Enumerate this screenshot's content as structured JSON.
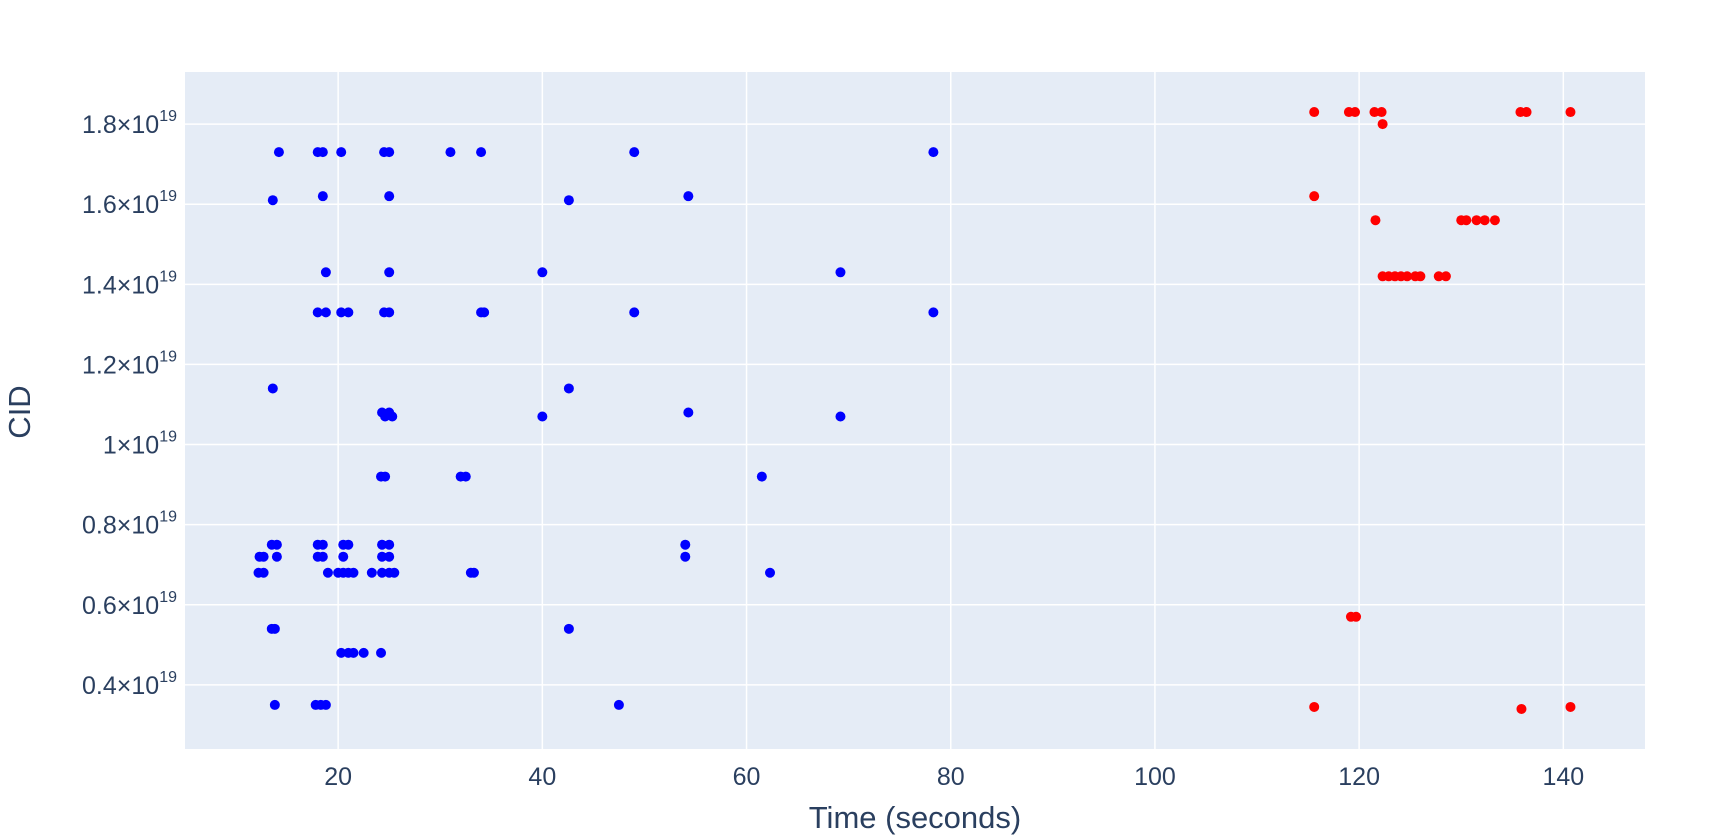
{
  "chart_data": {
    "type": "scatter",
    "xlabel": "Time (seconds)",
    "ylabel": "CID",
    "xlim": [
      5,
      148
    ],
    "ylim": [
      2.4e+18,
      1.93e+19
    ],
    "x_ticks": [
      20,
      40,
      60,
      80,
      100,
      120,
      140
    ],
    "y_ticks": [
      {
        "value": 4e+18,
        "mantissa": "0.4×10",
        "exponent": "19"
      },
      {
        "value": 6e+18,
        "mantissa": "0.6×10",
        "exponent": "19"
      },
      {
        "value": 8e+18,
        "mantissa": "0.8×10",
        "exponent": "19"
      },
      {
        "value": 1e+19,
        "mantissa": "1×10",
        "exponent": "19"
      },
      {
        "value": 1.2e+19,
        "mantissa": "1.2×10",
        "exponent": "19"
      },
      {
        "value": 1.4e+19,
        "mantissa": "1.4×10",
        "exponent": "19"
      },
      {
        "value": 1.6e+19,
        "mantissa": "1.6×10",
        "exponent": "19"
      },
      {
        "value": 1.8e+19,
        "mantissa": "1.8×10",
        "exponent": "19"
      }
    ],
    "grid": true,
    "colors": {
      "plot_bg": "#e5ecf6",
      "grid": "#ffffff",
      "text": "#2a3f5f"
    },
    "series": [
      {
        "color": "#0000ff",
        "points": [
          [
            14.2,
            1.73e+19
          ],
          [
            18.0,
            1.73e+19
          ],
          [
            18.5,
            1.73e+19
          ],
          [
            20.3,
            1.73e+19
          ],
          [
            24.5,
            1.73e+19
          ],
          [
            25.0,
            1.73e+19
          ],
          [
            31.0,
            1.73e+19
          ],
          [
            34.0,
            1.73e+19
          ],
          [
            49.0,
            1.73e+19
          ],
          [
            78.3,
            1.73e+19
          ],
          [
            13.6,
            1.61e+19
          ],
          [
            18.5,
            1.62e+19
          ],
          [
            25.0,
            1.62e+19
          ],
          [
            42.6,
            1.61e+19
          ],
          [
            54.3,
            1.62e+19
          ],
          [
            18.8,
            1.43e+19
          ],
          [
            25.0,
            1.43e+19
          ],
          [
            40.0,
            1.43e+19
          ],
          [
            69.2,
            1.43e+19
          ],
          [
            18.0,
            1.33e+19
          ],
          [
            18.8,
            1.33e+19
          ],
          [
            20.3,
            1.33e+19
          ],
          [
            21.0,
            1.33e+19
          ],
          [
            24.5,
            1.33e+19
          ],
          [
            25.0,
            1.33e+19
          ],
          [
            34.0,
            1.33e+19
          ],
          [
            34.3,
            1.33e+19
          ],
          [
            49.0,
            1.33e+19
          ],
          [
            78.3,
            1.33e+19
          ],
          [
            13.6,
            1.14e+19
          ],
          [
            42.6,
            1.14e+19
          ],
          [
            24.3,
            1.08e+19
          ],
          [
            24.6,
            1.07e+19
          ],
          [
            25.0,
            1.08e+19
          ],
          [
            25.3,
            1.07e+19
          ],
          [
            40.0,
            1.07e+19
          ],
          [
            54.3,
            1.08e+19
          ],
          [
            69.2,
            1.07e+19
          ],
          [
            24.2,
            9.2e+18
          ],
          [
            24.6,
            9.2e+18
          ],
          [
            32.0,
            9.2e+18
          ],
          [
            32.5,
            9.2e+18
          ],
          [
            61.5,
            9.2e+18
          ],
          [
            13.5,
            7.5e+18
          ],
          [
            14.0,
            7.5e+18
          ],
          [
            18.0,
            7.5e+18
          ],
          [
            18.5,
            7.5e+18
          ],
          [
            20.5,
            7.5e+18
          ],
          [
            21.0,
            7.5e+18
          ],
          [
            24.3,
            7.5e+18
          ],
          [
            25.0,
            7.5e+18
          ],
          [
            54.0,
            7.5e+18
          ],
          [
            12.3,
            7.2e+18
          ],
          [
            12.7,
            7.2e+18
          ],
          [
            14.0,
            7.2e+18
          ],
          [
            18.0,
            7.2e+18
          ],
          [
            18.5,
            7.2e+18
          ],
          [
            20.5,
            7.2e+18
          ],
          [
            24.3,
            7.2e+18
          ],
          [
            25.0,
            7.2e+18
          ],
          [
            54.0,
            7.2e+18
          ],
          [
            12.2,
            6.8e+18
          ],
          [
            12.7,
            6.8e+18
          ],
          [
            19.0,
            6.8e+18
          ],
          [
            20.0,
            6.8e+18
          ],
          [
            20.5,
            6.8e+18
          ],
          [
            21.0,
            6.8e+18
          ],
          [
            21.5,
            6.8e+18
          ],
          [
            23.3,
            6.8e+18
          ],
          [
            24.3,
            6.8e+18
          ],
          [
            25.0,
            6.8e+18
          ],
          [
            25.5,
            6.8e+18
          ],
          [
            33.0,
            6.8e+18
          ],
          [
            33.3,
            6.8e+18
          ],
          [
            62.3,
            6.8e+18
          ],
          [
            13.5,
            5.4e+18
          ],
          [
            13.8,
            5.4e+18
          ],
          [
            42.6,
            5.4e+18
          ],
          [
            20.3,
            4.8e+18
          ],
          [
            21.0,
            4.8e+18
          ],
          [
            21.5,
            4.8e+18
          ],
          [
            22.5,
            4.8e+18
          ],
          [
            24.2,
            4.8e+18
          ],
          [
            13.8,
            3.5e+18
          ],
          [
            17.8,
            3.5e+18
          ],
          [
            18.3,
            3.5e+18
          ],
          [
            18.8,
            3.5e+18
          ],
          [
            47.5,
            3.5e+18
          ]
        ]
      },
      {
        "color": "#ff0000",
        "points": [
          [
            115.6,
            1.83e+19
          ],
          [
            119.0,
            1.83e+19
          ],
          [
            119.6,
            1.83e+19
          ],
          [
            121.5,
            1.83e+19
          ],
          [
            122.2,
            1.83e+19
          ],
          [
            135.8,
            1.83e+19
          ],
          [
            136.4,
            1.83e+19
          ],
          [
            140.7,
            1.83e+19
          ],
          [
            122.3,
            1.8e+19
          ],
          [
            115.6,
            1.62e+19
          ],
          [
            121.6,
            1.56e+19
          ],
          [
            130.0,
            1.56e+19
          ],
          [
            130.5,
            1.56e+19
          ],
          [
            131.5,
            1.56e+19
          ],
          [
            132.3,
            1.56e+19
          ],
          [
            133.3,
            1.56e+19
          ],
          [
            122.3,
            1.42e+19
          ],
          [
            122.9,
            1.42e+19
          ],
          [
            123.5,
            1.42e+19
          ],
          [
            124.1,
            1.42e+19
          ],
          [
            124.7,
            1.42e+19
          ],
          [
            125.5,
            1.42e+19
          ],
          [
            126.0,
            1.42e+19
          ],
          [
            127.8,
            1.42e+19
          ],
          [
            128.5,
            1.42e+19
          ],
          [
            119.2,
            5.7e+18
          ],
          [
            119.7,
            5.7e+18
          ],
          [
            115.6,
            3.45e+18
          ],
          [
            135.9,
            3.4e+18
          ],
          [
            140.7,
            3.45e+18
          ]
        ]
      }
    ]
  }
}
